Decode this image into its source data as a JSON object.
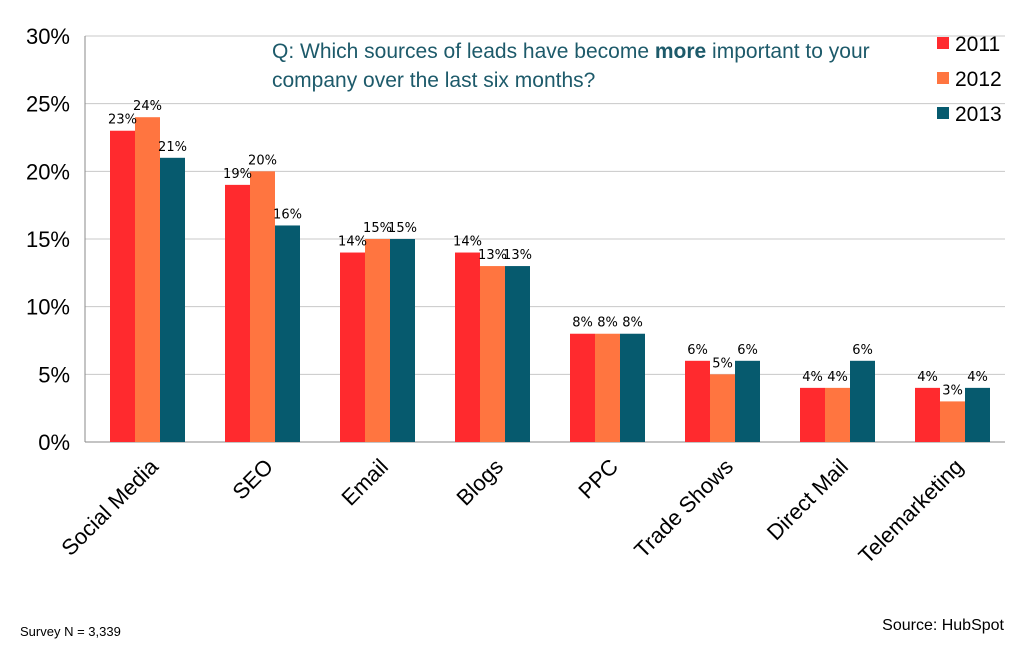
{
  "chart_data": {
    "type": "bar",
    "title_parts": {
      "before": "Q: Which sources of leads have become ",
      "bold": "more",
      "after": " important to your company over the last six months?"
    },
    "categories": [
      "Social Media",
      "SEO",
      "Email",
      "Blogs",
      "PPC",
      "Trade Shows",
      "Direct Mail",
      "Telemarketing"
    ],
    "series": [
      {
        "name": "2011",
        "color": "#ff2a2e",
        "values": [
          23,
          19,
          14,
          14,
          8,
          6,
          4,
          4
        ]
      },
      {
        "name": "2012",
        "color": "#ff7540",
        "values": [
          24,
          20,
          15,
          13,
          8,
          5,
          4,
          3
        ]
      },
      {
        "name": "2013",
        "color": "#065a6e",
        "values": [
          21,
          16,
          15,
          13,
          8,
          6,
          6,
          4
        ]
      }
    ],
    "yticks": [
      "0%",
      "5%",
      "10%",
      "15%",
      "20%",
      "25%",
      "30%"
    ],
    "ylim": [
      0,
      30
    ],
    "value_suffix": "%",
    "grid": true,
    "legend_position": "top-right"
  },
  "footer": {
    "survey": "Survey N = 3,339",
    "source": "Source: HubSpot"
  }
}
